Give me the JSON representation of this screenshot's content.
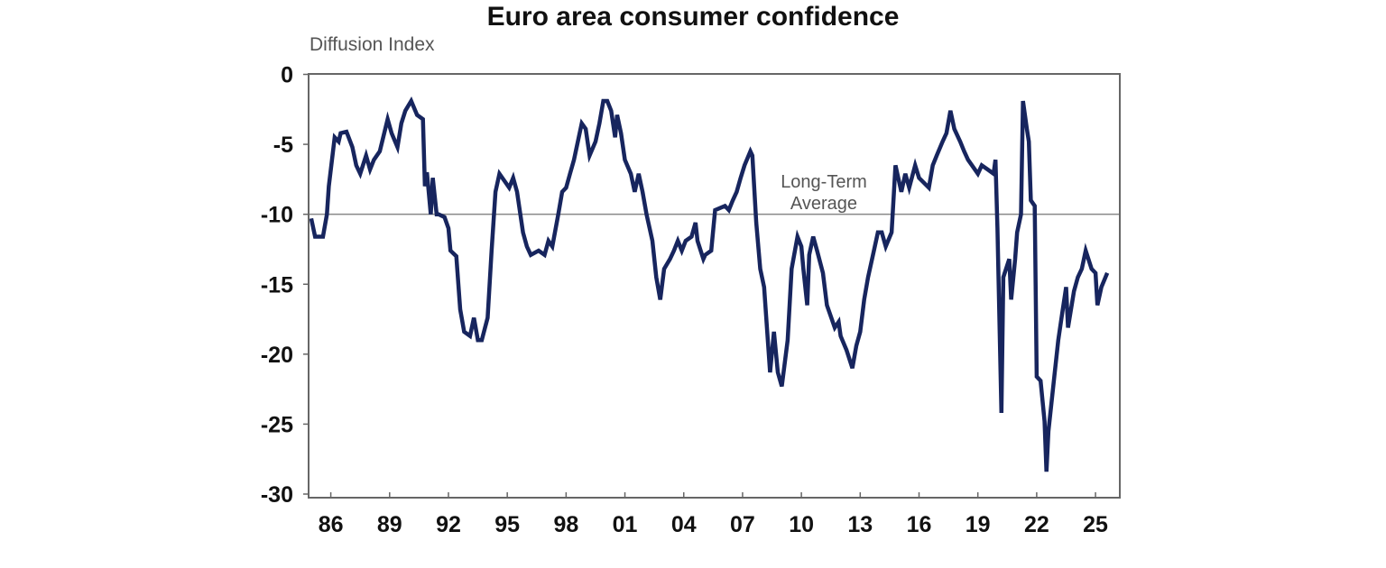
{
  "chart_data": {
    "type": "line",
    "title": "Euro area consumer confidence",
    "ylabel": "Diffusion Index",
    "xlabel": "",
    "xlim": [
      1985.0,
      2025.7
    ],
    "ylim": [
      -30,
      0
    ],
    "yticks": [
      0,
      -5,
      -10,
      -15,
      -20,
      -25,
      -30
    ],
    "xtick_years": [
      1986,
      1989,
      1992,
      1995,
      1998,
      2001,
      2004,
      2007,
      2010,
      2013,
      2016,
      2019,
      2022,
      2025
    ],
    "xtick_labels": [
      "86",
      "89",
      "92",
      "95",
      "98",
      "01",
      "04",
      "07",
      "10",
      "13",
      "16",
      "19",
      "22",
      "25"
    ],
    "grid": false,
    "line_color": "#17255e",
    "reference_line": {
      "value": -10,
      "label_line1": "Long-Term",
      "label_line2": "Average",
      "color": "#888888"
    },
    "series": [
      {
        "x": [
          1985.0,
          1985.2,
          1985.6,
          1985.8,
          1985.9,
          1986.2,
          1986.4,
          1986.5,
          1986.8,
          1987.1,
          1987.3,
          1987.5,
          1987.8,
          1988.0,
          1988.2,
          1988.5,
          1988.9,
          1989.1,
          1989.4,
          1989.6,
          1989.8,
          1990.1,
          1990.4,
          1990.7,
          1990.8,
          1990.9,
          1991.1,
          1991.2,
          1991.4,
          1991.5,
          1991.8,
          1992.0,
          1992.1,
          1992.4,
          1992.6,
          1992.8,
          1993.1,
          1993.3,
          1993.5,
          1993.7,
          1994.0,
          1994.2,
          1994.4,
          1994.6,
          1994.9,
          1995.1,
          1995.3,
          1995.5,
          1995.8,
          1996.0,
          1996.2,
          1996.6,
          1996.9,
          1997.1,
          1997.3,
          1997.6,
          1997.8,
          1998.0,
          1998.2,
          1998.4,
          1998.6,
          1998.8,
          1999.0,
          1999.2,
          1999.5,
          1999.7,
          1999.9,
          2000.1,
          2000.3,
          2000.5,
          2000.6,
          2000.8,
          2001.0,
          2001.3,
          2001.5,
          2001.7,
          2001.9,
          2002.1,
          2002.4,
          2002.6,
          2002.8,
          2003.0,
          2003.3,
          2003.5,
          2003.7,
          2003.9,
          2004.1,
          2004.4,
          2004.6,
          2004.7,
          2005.0,
          2005.1,
          2005.4,
          2005.6,
          2006.1,
          2006.3,
          2006.5,
          2006.7,
          2006.9,
          2007.1,
          2007.4,
          2007.5,
          2007.7,
          2007.9,
          2008.1,
          2008.4,
          2008.6,
          2008.8,
          2009.0,
          2009.3,
          2009.5,
          2009.8,
          2010.0,
          2010.1,
          2010.3,
          2010.4,
          2010.6,
          2010.8,
          2011.1,
          2011.3,
          2011.7,
          2011.9,
          2012.0,
          2012.3,
          2012.6,
          2012.8,
          2013.0,
          2013.2,
          2013.4,
          2013.7,
          2013.9,
          2014.1,
          2014.3,
          2014.6,
          2014.8,
          2015.1,
          2015.3,
          2015.5,
          2015.8,
          2016.0,
          2016.5,
          2016.7,
          2016.9,
          2017.2,
          2017.4,
          2017.6,
          2017.8,
          2018.1,
          2018.3,
          2018.5,
          2018.7,
          2019.0,
          2019.2,
          2019.5,
          2019.8,
          2019.9,
          2020.0,
          2020.2,
          2020.3,
          2020.6,
          2020.7,
          2020.9,
          2021.0,
          2021.2,
          2021.3,
          2021.5,
          2021.6,
          2021.7,
          2021.9,
          2022.0,
          2022.2,
          2022.4,
          2022.5,
          2022.6,
          2022.9,
          2023.1,
          2023.3,
          2023.5,
          2023.6,
          2023.9,
          2024.1,
          2024.3,
          2024.5,
          2024.8,
          2025.0,
          2025.1,
          2025.3,
          2025.6
        ],
        "y": [
          -10.3,
          -11.6,
          -11.6,
          -10.0,
          -8.0,
          -4.5,
          -4.8,
          -4.2,
          -4.1,
          -5.2,
          -6.5,
          -7.1,
          -5.8,
          -6.8,
          -6.1,
          -5.5,
          -3.2,
          -4.2,
          -5.2,
          -3.5,
          -2.6,
          -1.9,
          -2.9,
          -3.2,
          -8.0,
          -7.0,
          -10.0,
          -7.4,
          -10.0,
          -10.0,
          -10.2,
          -11.0,
          -12.6,
          -13.0,
          -16.8,
          -18.4,
          -18.7,
          -17.4,
          -19.0,
          -19.0,
          -17.4,
          -12.6,
          -8.4,
          -7.1,
          -7.7,
          -8.1,
          -7.4,
          -8.4,
          -11.3,
          -12.3,
          -12.9,
          -12.6,
          -12.9,
          -11.9,
          -12.3,
          -10.0,
          -8.4,
          -8.1,
          -7.1,
          -6.1,
          -4.8,
          -3.5,
          -3.9,
          -5.8,
          -4.8,
          -3.5,
          -1.9,
          -1.9,
          -2.6,
          -4.5,
          -2.9,
          -4.2,
          -6.1,
          -7.1,
          -8.4,
          -7.1,
          -8.4,
          -10.0,
          -11.9,
          -14.5,
          -16.1,
          -13.9,
          -13.2,
          -12.6,
          -11.9,
          -12.6,
          -11.9,
          -11.6,
          -10.6,
          -11.9,
          -13.2,
          -12.9,
          -12.6,
          -9.7,
          -9.4,
          -9.7,
          -9.0,
          -8.4,
          -7.4,
          -6.5,
          -5.5,
          -5.8,
          -10.6,
          -13.9,
          -15.2,
          -21.3,
          -18.4,
          -21.3,
          -22.3,
          -19.0,
          -13.9,
          -11.6,
          -12.3,
          -13.9,
          -16.5,
          -12.9,
          -11.6,
          -12.6,
          -14.2,
          -16.5,
          -18.1,
          -17.7,
          -18.7,
          -19.7,
          -21.0,
          -19.4,
          -18.4,
          -16.1,
          -14.5,
          -12.6,
          -11.3,
          -11.3,
          -12.3,
          -11.3,
          -6.5,
          -8.4,
          -7.1,
          -8.1,
          -6.5,
          -7.4,
          -8.1,
          -6.5,
          -5.8,
          -4.8,
          -4.2,
          -2.6,
          -3.9,
          -4.8,
          -5.5,
          -6.1,
          -6.5,
          -7.1,
          -6.5,
          -6.8,
          -7.1,
          -6.1,
          -11.0,
          -24.2,
          -14.5,
          -13.2,
          -16.1,
          -13.2,
          -11.3,
          -10.0,
          -1.9,
          -3.9,
          -4.8,
          -9.0,
          -9.4,
          -21.6,
          -21.9,
          -24.8,
          -28.4,
          -25.5,
          -21.6,
          -19.0,
          -17.1,
          -15.2,
          -18.1,
          -15.5,
          -14.5,
          -13.9,
          -12.6,
          -13.9,
          -14.2,
          -16.5,
          -15.2,
          -14.2
        ]
      }
    ]
  }
}
